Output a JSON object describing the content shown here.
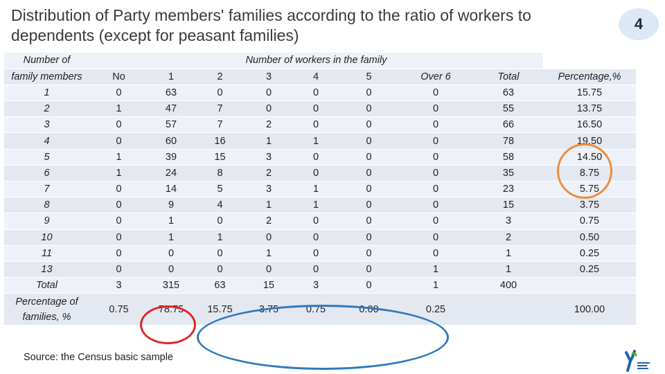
{
  "title": {
    "line1": "Distribution of Party members' families according to the ratio of workers to",
    "line2": "dependents (except for peasant families)"
  },
  "page_number": "4",
  "table": {
    "row_header_line1": "Number of",
    "row_header_line2": "family members",
    "group_header": "Number of workers in the family",
    "columns": [
      "No",
      "1",
      "2",
      "3",
      "4",
      "5",
      "Over 6",
      "Total",
      "Percentage,%"
    ],
    "rows": [
      {
        "label": "1",
        "cells": [
          "0",
          "63",
          "0",
          "0",
          "0",
          "0",
          "0",
          "63",
          "15.75"
        ]
      },
      {
        "label": "2",
        "cells": [
          "1",
          "47",
          "7",
          "0",
          "0",
          "0",
          "0",
          "55",
          "13.75"
        ]
      },
      {
        "label": "3",
        "cells": [
          "0",
          "57",
          "7",
          "2",
          "0",
          "0",
          "0",
          "66",
          "16.50"
        ]
      },
      {
        "label": "4",
        "cells": [
          "0",
          "60",
          "16",
          "1",
          "1",
          "0",
          "0",
          "78",
          "19.50"
        ]
      },
      {
        "label": "5",
        "cells": [
          "1",
          "39",
          "15",
          "3",
          "0",
          "0",
          "0",
          "58",
          "14.50"
        ]
      },
      {
        "label": "6",
        "cells": [
          "1",
          "24",
          "8",
          "2",
          "0",
          "0",
          "0",
          "35",
          "8.75"
        ]
      },
      {
        "label": "7",
        "cells": [
          "0",
          "14",
          "5",
          "3",
          "1",
          "0",
          "0",
          "23",
          "5.75"
        ]
      },
      {
        "label": "8",
        "cells": [
          "0",
          "9",
          "4",
          "1",
          "1",
          "0",
          "0",
          "15",
          "3.75"
        ]
      },
      {
        "label": "9",
        "cells": [
          "0",
          "1",
          "0",
          "2",
          "0",
          "0",
          "0",
          "3",
          "0.75"
        ]
      },
      {
        "label": "10",
        "cells": [
          "0",
          "1",
          "1",
          "0",
          "0",
          "0",
          "0",
          "2",
          "0.50"
        ]
      },
      {
        "label": "11",
        "cells": [
          "0",
          "0",
          "0",
          "1",
          "0",
          "0",
          "0",
          "1",
          "0.25"
        ]
      },
      {
        "label": "13",
        "cells": [
          "0",
          "0",
          "0",
          "0",
          "0",
          "0",
          "1",
          "1",
          "0.25"
        ]
      }
    ],
    "total_row": {
      "label": "Total",
      "cells": [
        "3",
        "315",
        "63",
        "15",
        "3",
        "0",
        "1",
        "400",
        ""
      ]
    },
    "percent_row": {
      "label_line1": "Percentage of",
      "label_line2": "families, %",
      "cells": [
        "0.75",
        "78.75",
        "15.75",
        "3.75",
        "0.75",
        "0.00",
        "0.25",
        "",
        "100.00"
      ]
    }
  },
  "source": "Source: the Census basic sample",
  "colors": {
    "red_circle": "#e32626",
    "orange_circle": "#ef8c3a",
    "blue_circle": "#2f79bd",
    "logo_blue": "#1b62b0",
    "logo_green": "#4caf3d"
  }
}
